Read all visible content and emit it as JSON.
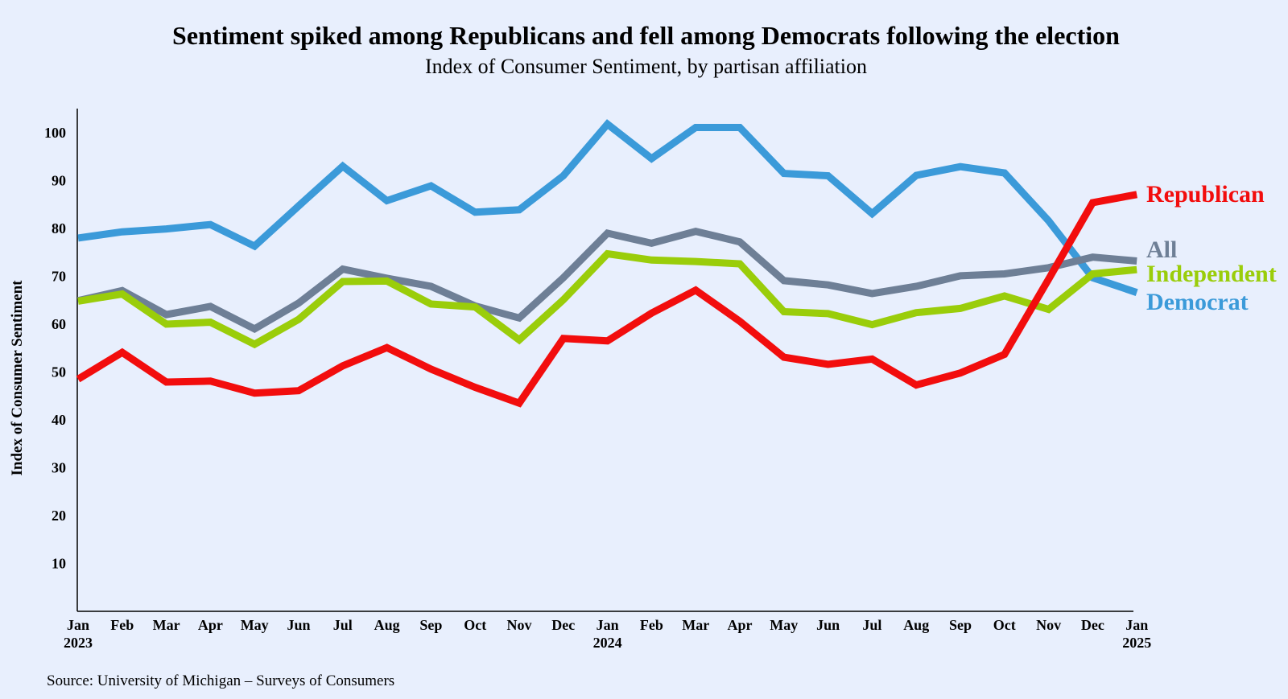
{
  "chart_data": {
    "type": "line",
    "title": "Sentiment spiked among Republicans and fell among Democrats following the election",
    "subtitle": "Index of Consumer Sentiment, by partisan affiliation",
    "ylabel": "Index of Consumer Sentiment",
    "xlabel": "",
    "ylim": [
      0,
      105
    ],
    "yticks": [
      10,
      20,
      30,
      40,
      50,
      60,
      70,
      80,
      90,
      100
    ],
    "grid": false,
    "legend": "inline-right",
    "x_tick_labels": [
      {
        "month": "Jan",
        "year": "2023"
      },
      {
        "month": "Feb",
        "year": ""
      },
      {
        "month": "Mar",
        "year": ""
      },
      {
        "month": "Apr",
        "year": ""
      },
      {
        "month": "May",
        "year": ""
      },
      {
        "month": "Jun",
        "year": ""
      },
      {
        "month": "Jul",
        "year": ""
      },
      {
        "month": "Aug",
        "year": ""
      },
      {
        "month": "Sep",
        "year": ""
      },
      {
        "month": "Oct",
        "year": ""
      },
      {
        "month": "Nov",
        "year": ""
      },
      {
        "month": "Dec",
        "year": ""
      },
      {
        "month": "Jan",
        "year": "2024"
      },
      {
        "month": "Feb",
        "year": ""
      },
      {
        "month": "Mar",
        "year": ""
      },
      {
        "month": "Apr",
        "year": ""
      },
      {
        "month": "May",
        "year": ""
      },
      {
        "month": "Jun",
        "year": ""
      },
      {
        "month": "Jul",
        "year": ""
      },
      {
        "month": "Aug",
        "year": ""
      },
      {
        "month": "Sep",
        "year": ""
      },
      {
        "month": "Oct",
        "year": ""
      },
      {
        "month": "Nov",
        "year": ""
      },
      {
        "month": "Dec",
        "year": ""
      },
      {
        "month": "Jan",
        "year": "2025"
      }
    ],
    "series": [
      {
        "name": "Democrat",
        "color": "#3b9ad9",
        "values": [
          78.0,
          79.3,
          79.9,
          80.8,
          76.3,
          84.7,
          93.0,
          85.8,
          88.9,
          83.4,
          83.9,
          91.0,
          101.8,
          94.6,
          101.1,
          101.1,
          91.5,
          91.0,
          83.1,
          91.1,
          92.9,
          91.6,
          81.6,
          69.7,
          66.6
        ]
      },
      {
        "name": "All",
        "color": "#6e7f96",
        "values": [
          64.9,
          67.0,
          62.0,
          63.7,
          59.0,
          64.4,
          71.5,
          69.6,
          67.9,
          63.8,
          61.3,
          69.7,
          79.0,
          76.9,
          79.4,
          77.2,
          69.1,
          68.2,
          66.4,
          67.9,
          70.1,
          70.5,
          71.8,
          74.0,
          73.2
        ]
      },
      {
        "name": "Independent",
        "color": "#9acd0a",
        "values": [
          64.8,
          66.3,
          60.0,
          60.4,
          55.8,
          61.0,
          68.9,
          69.0,
          64.2,
          63.6,
          56.7,
          65.1,
          74.7,
          73.4,
          73.1,
          72.6,
          62.6,
          62.2,
          59.9,
          62.4,
          63.3,
          65.9,
          63.1,
          70.5,
          71.4
        ]
      },
      {
        "name": "Republican",
        "color": "#f20d0d",
        "values": [
          48.5,
          54.1,
          47.9,
          48.1,
          45.6,
          46.1,
          51.3,
          55.1,
          50.6,
          46.8,
          43.5,
          57.0,
          56.5,
          62.3,
          67.1,
          60.6,
          53.1,
          51.6,
          52.7,
          47.3,
          49.8,
          53.7,
          69.4,
          85.4,
          87.1
        ]
      }
    ],
    "line_labels": [
      {
        "series": "Republican",
        "text": "Republican",
        "color": "#f20d0d"
      },
      {
        "series": "All",
        "text": "All",
        "color": "#6e7f96"
      },
      {
        "series": "Independent",
        "text": "Independent",
        "color": "#9acd0a"
      },
      {
        "series": "Democrat",
        "text": "Democrat",
        "color": "#3b9ad9"
      }
    ]
  },
  "source": "Source: University of Michigan – Surveys of Consumers"
}
